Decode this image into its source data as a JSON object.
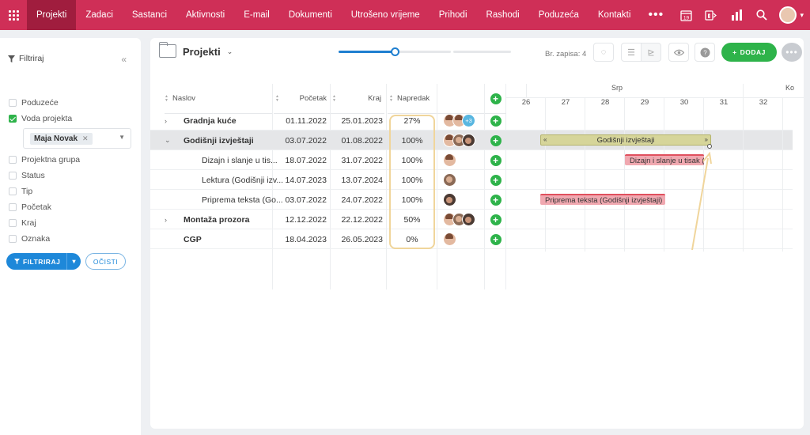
{
  "nav": {
    "items": [
      "Projekti",
      "Zadaci",
      "Sastanci",
      "Aktivnosti",
      "E-mail",
      "Dokumenti",
      "Utrošeno vrijeme",
      "Prihodi",
      "Rashodi",
      "Poduzeća",
      "Kontakti"
    ],
    "more": "•••",
    "calendar_day": "19",
    "accent": "#cf2f57",
    "active_bg": "#a01d3e"
  },
  "sidebar": {
    "title": "Filtriraj",
    "filters": [
      {
        "label": "Poduzeće",
        "checked": false
      },
      {
        "label": "Voda projekta",
        "checked": true
      },
      {
        "label": "Projektna grupa",
        "checked": false
      },
      {
        "label": "Status",
        "checked": false
      },
      {
        "label": "Tip",
        "checked": false
      },
      {
        "label": "Početak",
        "checked": false
      },
      {
        "label": "Kraj",
        "checked": false
      },
      {
        "label": "Oznaka",
        "checked": false
      }
    ],
    "selected_tag": "Maja Novak",
    "filter_button": "FILTRIRAJ",
    "clear_button": "OČISTI"
  },
  "main": {
    "title": "Projekti",
    "record_count": "Br. zapisa: 4",
    "add_button": "DODAJ",
    "zoom_level": 0.39,
    "columns": {
      "title": "Naslov",
      "start": "Početak",
      "end": "Kraj",
      "progress": "Napredak"
    },
    "rows": [
      {
        "title": "Gradnja kuće",
        "start": "01.11.2022",
        "end": "25.01.2023",
        "progress": "27%",
        "level": 0,
        "bold": true,
        "expander": "›",
        "avatars": [
          "f",
          "f"
        ],
        "more": "+3"
      },
      {
        "title": "Godišnji izvještaji",
        "start": "03.07.2022",
        "end": "01.08.2022",
        "progress": "100%",
        "level": 0,
        "bold": true,
        "expander": "⌄",
        "avatars": [
          "f",
          "m",
          "m2"
        ],
        "more": ""
      },
      {
        "title": "Dizajn i slanje u tis...",
        "start": "18.07.2022",
        "end": "31.07.2022",
        "progress": "100%",
        "level": 1,
        "bold": false,
        "expander": "",
        "avatars": [
          "f"
        ],
        "more": ""
      },
      {
        "title": "Lektura (Godišnji izv...",
        "start": "14.07.2023",
        "end": "13.07.2024",
        "progress": "100%",
        "level": 1,
        "bold": false,
        "expander": "",
        "avatars": [
          "m"
        ],
        "more": ""
      },
      {
        "title": "Priprema teksta (Go...",
        "start": "03.07.2022",
        "end": "24.07.2022",
        "progress": "100%",
        "level": 1,
        "bold": false,
        "expander": "",
        "avatars": [
          "m2"
        ],
        "more": ""
      },
      {
        "title": "Montaža prozora",
        "start": "12.12.2022",
        "end": "22.12.2022",
        "progress": "50%",
        "level": 0,
        "bold": true,
        "expander": "›",
        "avatars": [
          "f",
          "m",
          "m2"
        ],
        "more": ""
      },
      {
        "title": "CGP",
        "start": "18.04.2023",
        "end": "26.05.2023",
        "progress": "0%",
        "level": 0,
        "bold": true,
        "expander": "",
        "avatars": [
          "f"
        ],
        "more": ""
      }
    ]
  },
  "gantt": {
    "months": [
      "Srp",
      "Ko"
    ],
    "days": [
      "26",
      "27",
      "28",
      "29",
      "30",
      "31",
      "32"
    ],
    "bars": [
      {
        "label": "Godišnji izvještaji",
        "row": 1,
        "type": "summary"
      },
      {
        "label": "Dizajn i slanje u tisak (...",
        "row": 2,
        "type": "task"
      },
      {
        "label": "Priprema teksta (Godišnji izvještaji)",
        "row": 4,
        "type": "task"
      }
    ]
  }
}
